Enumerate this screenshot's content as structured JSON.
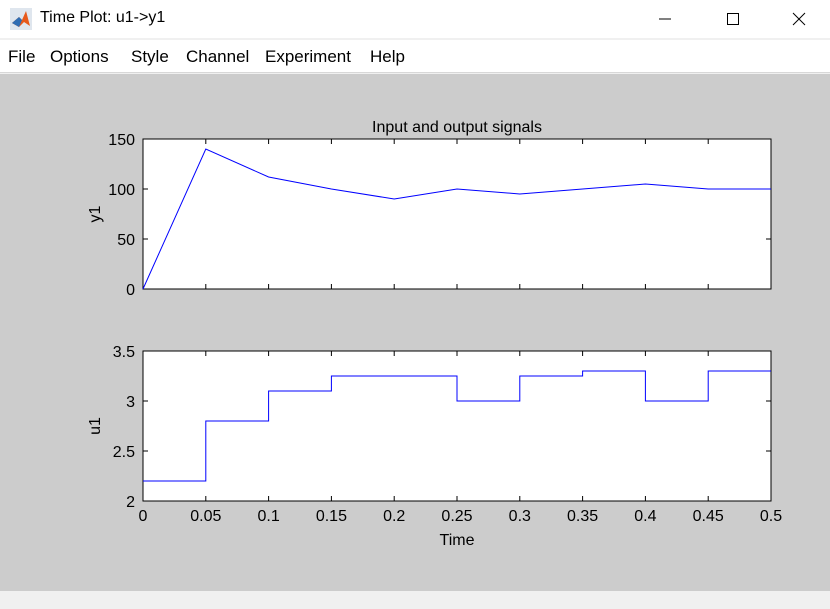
{
  "window": {
    "title": "Time Plot: u1->y1"
  },
  "menu": [
    "File",
    "Options",
    "Style",
    "Channel",
    "Experiment",
    "Help"
  ],
  "colors": {
    "line": "#0000ff",
    "figure_bg": "#cccccc"
  },
  "icons": [
    "matlab-logo-icon",
    "minimize-icon",
    "maximize-icon",
    "close-icon"
  ],
  "chart_data": [
    {
      "type": "line",
      "title": "Input and output signals",
      "xlabel": "",
      "ylabel": "y1",
      "xlim": [
        0,
        0.5
      ],
      "ylim": [
        0,
        150
      ],
      "yticks": [
        0,
        50,
        100,
        150
      ],
      "xticks": [
        0,
        0.05,
        0.1,
        0.15,
        0.2,
        0.25,
        0.3,
        0.35,
        0.4,
        0.45,
        0.5
      ],
      "grid": false,
      "series": [
        {
          "x": [
            0,
            0.05,
            0.1,
            0.15,
            0.2,
            0.25,
            0.3,
            0.35,
            0.4,
            0.45,
            0.5
          ],
          "y": [
            0,
            140,
            112,
            100,
            90,
            100,
            95,
            100,
            105,
            100,
            100
          ]
        }
      ]
    },
    {
      "type": "line",
      "step": true,
      "title": "",
      "xlabel": "Time",
      "ylabel": "u1",
      "xlim": [
        0,
        0.5
      ],
      "ylim": [
        2,
        3.5
      ],
      "yticks": [
        2,
        2.5,
        3,
        3.5
      ],
      "ytick_labels": [
        "2",
        "2.5",
        "3",
        "3.5"
      ],
      "xticks": [
        0,
        0.05,
        0.1,
        0.15,
        0.2,
        0.25,
        0.3,
        0.35,
        0.4,
        0.45,
        0.5
      ],
      "xtick_labels": [
        "0",
        "0.05",
        "0.1",
        "0.15",
        "0.2",
        "0.25",
        "0.3",
        "0.35",
        "0.4",
        "0.45",
        "0.5"
      ],
      "grid": false,
      "series": [
        {
          "x": [
            0,
            0.05,
            0.1,
            0.15,
            0.2,
            0.25,
            0.3,
            0.35,
            0.4,
            0.45
          ],
          "y": [
            2.2,
            2.8,
            3.1,
            3.25,
            3.25,
            3.0,
            3.25,
            3.3,
            3.0,
            3.3
          ]
        }
      ]
    }
  ]
}
